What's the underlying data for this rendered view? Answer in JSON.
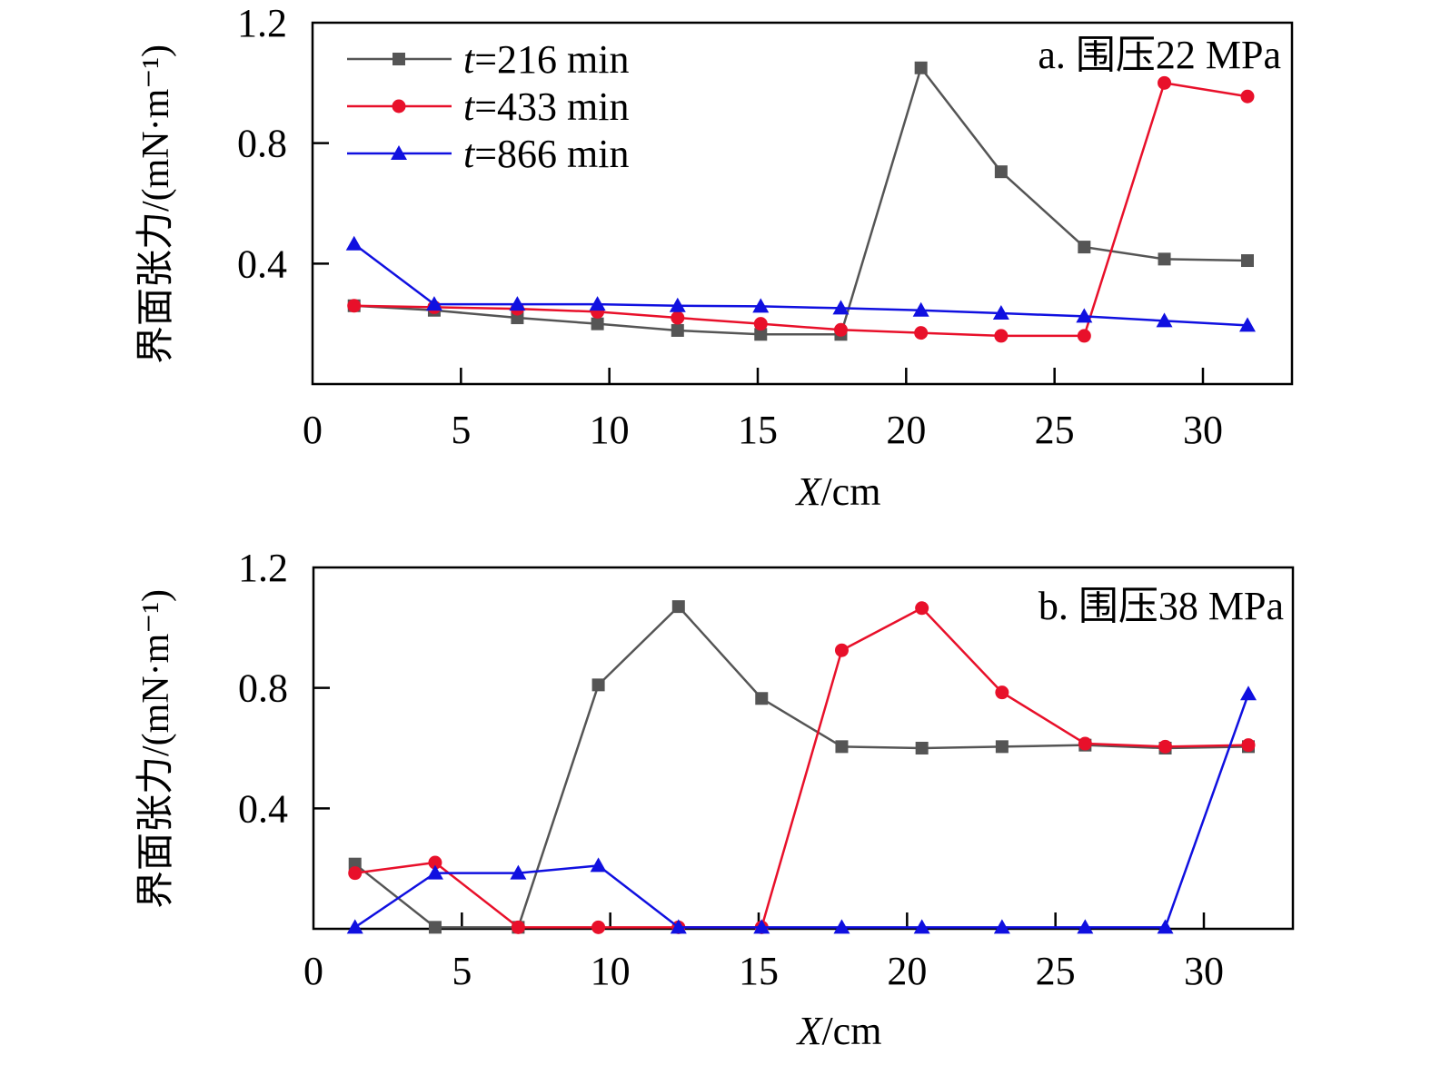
{
  "chart_data": [
    {
      "type": "line",
      "title": "a. 围压22 MPa",
      "xlabel_italic": "X",
      "xlabel_rest": "/cm",
      "ylabel": "界面张力/(mN·m⁻¹)",
      "xlim": [
        0,
        33
      ],
      "ylim": [
        0,
        1.2
      ],
      "xticks": [
        0,
        5,
        10,
        15,
        20,
        25,
        30
      ],
      "yticks": [
        0.4,
        0.8,
        1.2
      ],
      "ytick_labels": [
        "0.4",
        "0.8",
        "1.2"
      ],
      "xtick_labels": [
        "0",
        "5",
        "10",
        "15",
        "20",
        "25",
        "30"
      ],
      "legend_position": "top-left",
      "series": [
        {
          "name_italic": "t",
          "name_rest": "=216 min",
          "color": "#555555",
          "marker": "square",
          "x": [
            1.4,
            4.1,
            6.9,
            9.6,
            12.3,
            15.1,
            17.8,
            20.5,
            23.2,
            26.0,
            28.7,
            31.5
          ],
          "y": [
            0.26,
            0.245,
            0.22,
            0.2,
            0.178,
            0.165,
            0.165,
            1.05,
            0.705,
            0.455,
            0.415,
            0.41
          ]
        },
        {
          "name_italic": "t",
          "name_rest": "=433 min",
          "color": "#e8102a",
          "marker": "circle",
          "x": [
            1.4,
            4.1,
            6.9,
            9.6,
            12.3,
            15.1,
            17.8,
            20.5,
            23.2,
            26.0,
            28.7,
            31.5
          ],
          "y": [
            0.26,
            0.255,
            0.25,
            0.24,
            0.22,
            0.2,
            0.18,
            0.17,
            0.16,
            0.16,
            1.0,
            0.955
          ]
        },
        {
          "name_italic": "t",
          "name_rest": "=866 min",
          "color": "#1010e0",
          "marker": "triangle",
          "x": [
            1.4,
            4.1,
            6.9,
            9.6,
            12.3,
            15.1,
            17.8,
            20.5,
            23.2,
            26.0,
            28.7,
            31.5
          ],
          "y": [
            0.465,
            0.265,
            0.265,
            0.265,
            0.26,
            0.258,
            0.252,
            0.245,
            0.235,
            0.225,
            0.21,
            0.195
          ]
        }
      ]
    },
    {
      "type": "line",
      "title": "b. 围压38 MPa",
      "xlabel_italic": "X",
      "xlabel_rest": "/cm",
      "ylabel": "界面张力/(mN·m⁻¹)",
      "xlim": [
        0,
        33
      ],
      "ylim": [
        0,
        1.2
      ],
      "xticks": [
        0,
        5,
        10,
        15,
        20,
        25,
        30
      ],
      "yticks": [
        0.4,
        0.8,
        1.2
      ],
      "ytick_labels": [
        "0.4",
        "0.8",
        "1.2"
      ],
      "xtick_labels": [
        "0",
        "5",
        "10",
        "15",
        "20",
        "25",
        "30"
      ],
      "series": [
        {
          "color": "#555555",
          "marker": "square",
          "x": [
            1.4,
            4.1,
            6.9,
            9.6,
            12.3,
            15.1,
            17.8,
            20.5,
            23.2,
            26.0,
            28.7,
            31.5
          ],
          "y": [
            0.215,
            0.005,
            0.005,
            0.81,
            1.07,
            0.765,
            0.605,
            0.6,
            0.605,
            0.61,
            0.6,
            0.605
          ]
        },
        {
          "color": "#e8102a",
          "marker": "circle",
          "x": [
            1.4,
            4.1,
            6.9,
            9.6,
            12.3,
            15.1,
            17.8,
            20.5,
            23.2,
            26.0,
            28.7,
            31.5
          ],
          "y": [
            0.185,
            0.22,
            0.005,
            0.005,
            0.005,
            0.005,
            0.925,
            1.065,
            0.785,
            0.615,
            0.605,
            0.61
          ]
        },
        {
          "color": "#1010e0",
          "marker": "triangle",
          "x": [
            1.4,
            4.1,
            6.9,
            9.6,
            12.3,
            15.1,
            17.8,
            20.5,
            23.2,
            26.0,
            28.7,
            31.5
          ],
          "y": [
            0.005,
            0.185,
            0.185,
            0.21,
            0.005,
            0.005,
            0.005,
            0.005,
            0.005,
            0.005,
            0.005,
            0.78
          ]
        }
      ]
    }
  ]
}
